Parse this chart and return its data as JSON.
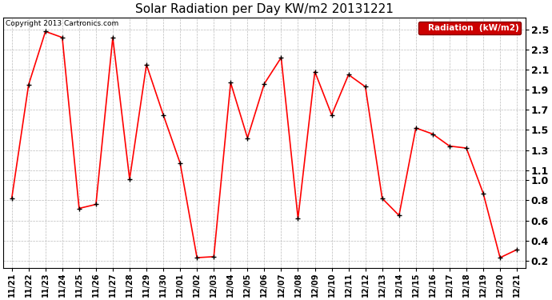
{
  "title": "Solar Radiation per Day KW/m2 20131221",
  "copyright_text": "Copyright 2013 Cartronics.com",
  "legend_label": "Radiation  (kW/m2)",
  "x_labels": [
    "11/21",
    "11/22",
    "11/23",
    "11/24",
    "11/25",
    "11/26",
    "11/27",
    "11/28",
    "11/29",
    "11/30",
    "12/01",
    "12/02",
    "12/03",
    "12/04",
    "12/05",
    "12/06",
    "12/07",
    "12/08",
    "12/09",
    "12/10",
    "12/11",
    "12/12",
    "12/13",
    "12/14",
    "12/15",
    "12/16",
    "12/17",
    "12/18",
    "12/19",
    "12/20",
    "12/21"
  ],
  "y_values": [
    0.82,
    1.95,
    2.48,
    2.42,
    0.72,
    0.76,
    2.42,
    1.01,
    2.15,
    1.65,
    1.17,
    0.23,
    0.24,
    1.97,
    1.42,
    1.96,
    2.22,
    0.62,
    2.08,
    1.65,
    2.05,
    1.93,
    0.82,
    0.65,
    1.52,
    1.46,
    1.34,
    1.32,
    0.87,
    0.23,
    0.31
  ],
  "line_color": "#ff0000",
  "marker_color": "#000000",
  "marker_size": 3,
  "line_width": 1.2,
  "ylim": [
    0.13,
    2.62
  ],
  "yticks": [
    0.2,
    0.4,
    0.6,
    0.8,
    1.0,
    1.1,
    1.3,
    1.5,
    1.7,
    1.9,
    2.1,
    2.3,
    2.5
  ],
  "ytick_labels": [
    "0.2",
    "0.4",
    "0.6",
    "0.8",
    "1.0",
    "1.1",
    "1.3",
    "1.5",
    "1.7",
    "1.9",
    "2.1",
    "2.3",
    "2.5"
  ],
  "background_color": "#ffffff",
  "grid_color": "#bbbbbb",
  "legend_bg": "#cc0000",
  "legend_text_color": "#ffffff",
  "title_fontsize": 11,
  "copyright_fontsize": 6.5,
  "tick_fontsize": 7,
  "ytick_fontsize": 9
}
